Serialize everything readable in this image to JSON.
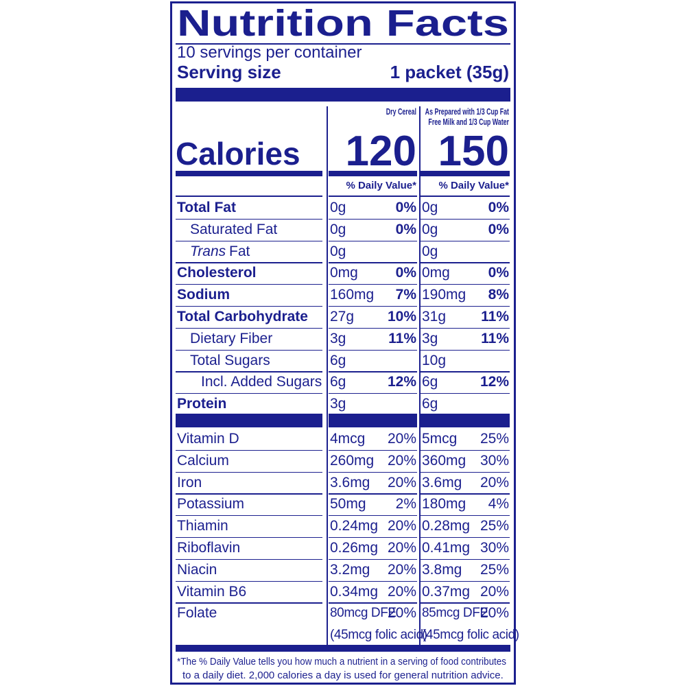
{
  "title": "Nutrition Facts",
  "servings": "10 servings per container",
  "serving_size": {
    "label": "Serving size",
    "value": "1 packet (35g)"
  },
  "columns": [
    "Dry Cereal",
    "As Prepared with 1/3 Cup Fat Free Milk and 1/3 Cup Water"
  ],
  "calories": {
    "label": "Calories",
    "values": [
      "120",
      "150"
    ]
  },
  "daily_value_header": "% Daily Value*",
  "nutrients": [
    {
      "name": "Total Fat",
      "amounts": [
        "0g",
        "0g"
      ],
      "dv": [
        "0%",
        "0%"
      ],
      "sub": [
        {
          "name": "Saturated Fat",
          "amounts": [
            "0g",
            "0g"
          ],
          "dv": [
            "0%",
            "0%"
          ]
        },
        {
          "name_italic": "Trans",
          "name": "Fat",
          "amounts": [
            "0g",
            "0g"
          ],
          "dv": [
            null,
            null
          ]
        }
      ]
    },
    {
      "name": "Cholesterol",
      "amounts": [
        "0mg",
        "0mg"
      ],
      "dv": [
        "0%",
        "0%"
      ]
    },
    {
      "name": "Sodium",
      "amounts": [
        "160mg",
        "190mg"
      ],
      "dv": [
        "7%",
        "8%"
      ]
    },
    {
      "name": "Total Carbohydrate",
      "amounts": [
        "27g",
        "31g"
      ],
      "dv": [
        "10%",
        "11%"
      ],
      "sub": [
        {
          "name": "Dietary Fiber",
          "amounts": [
            "3g",
            "3g"
          ],
          "dv": [
            "11%",
            "11%"
          ]
        },
        {
          "name": "Total Sugars",
          "amounts": [
            "6g",
            "10g"
          ],
          "dv": [
            null,
            null
          ],
          "sub": [
            {
              "name": "Incl. Added Sugars",
              "amounts": [
                "6g",
                "6g"
              ],
              "dv": [
                "12%",
                "12%"
              ]
            }
          ]
        }
      ]
    },
    {
      "name": "Protein",
      "amounts": [
        "3g",
        "6g"
      ],
      "dv": [
        null,
        null
      ]
    }
  ],
  "vitamins": [
    {
      "name": "Vitamin D",
      "amounts": [
        "4mcg",
        "5mcg"
      ],
      "dv": [
        "20%",
        "25%"
      ]
    },
    {
      "name": "Calcium",
      "amounts": [
        "260mg",
        "360mg"
      ],
      "dv": [
        "20%",
        "30%"
      ]
    },
    {
      "name": "Iron",
      "amounts": [
        "3.6mg",
        "3.6mg"
      ],
      "dv": [
        "20%",
        "20%"
      ]
    },
    {
      "name": "Potassium",
      "amounts": [
        "50mg",
        "180mg"
      ],
      "dv": [
        "2%",
        "4%"
      ]
    },
    {
      "name": "Thiamin",
      "amounts": [
        "0.24mg",
        "0.28mg"
      ],
      "dv": [
        "20%",
        "25%"
      ]
    },
    {
      "name": "Riboflavin",
      "amounts": [
        "0.26mg",
        "0.41mg"
      ],
      "dv": [
        "20%",
        "30%"
      ]
    },
    {
      "name": "Niacin",
      "amounts": [
        "3.2mg",
        "3.8mg"
      ],
      "dv": [
        "20%",
        "25%"
      ]
    },
    {
      "name": "Vitamin B6",
      "amounts": [
        "0.34mg",
        "0.37mg"
      ],
      "dv": [
        "20%",
        "20%"
      ]
    },
    {
      "name": "Folate",
      "amounts": [
        "80mcg DFE",
        "85mcg DFE"
      ],
      "dv": [
        "20%",
        "20%"
      ],
      "note": [
        "(45mcg folic acid)",
        "(45mcg folic acid)"
      ]
    }
  ],
  "footnote": [
    "*The % Daily Value tells you how much a nutrient in a serving of food contributes",
    "to a daily diet. 2,000 calories a day is used for general nutrition advice."
  ]
}
